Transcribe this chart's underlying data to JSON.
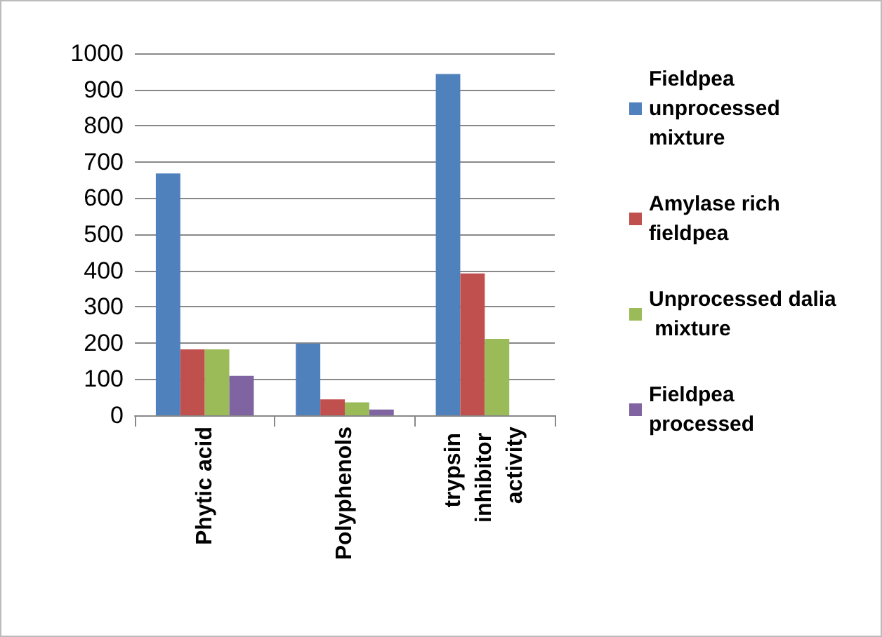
{
  "chart_data": {
    "type": "bar",
    "categories": [
      "Phytic acid",
      "Polyphenols",
      "trypsin inhibitor activity"
    ],
    "series": [
      {
        "name": "Fieldpea unprocessed mixture",
        "color": "#4f81bd",
        "values": [
          668,
          198,
          943
        ]
      },
      {
        "name": "Amylase rich fieldpea",
        "color": "#c0504d",
        "values": [
          182,
          44,
          392
        ]
      },
      {
        "name": "Unprocessed dalia mixture",
        "color": "#9bbb59",
        "values": [
          182,
          36,
          211
        ]
      },
      {
        "name": "Fieldpea processed",
        "color": "#8064a2",
        "values": [
          109,
          16,
          null
        ]
      }
    ],
    "ylim": [
      0,
      1000
    ],
    "yticks": [
      0,
      100,
      200,
      300,
      400,
      500,
      600,
      700,
      800,
      900,
      1000
    ],
    "grid": "y",
    "legend": "right"
  }
}
